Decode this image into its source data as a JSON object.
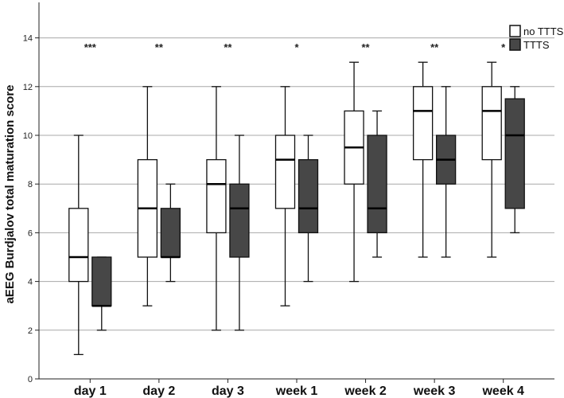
{
  "chart_data": {
    "type": "box",
    "ylabel": "aEEG Burdjalov total maturation score",
    "xlabel": "",
    "ylim": [
      0,
      15.5
    ],
    "yticks": [
      0,
      2,
      4,
      6,
      8,
      10,
      12,
      14
    ],
    "grid": true,
    "legend_position": "top-right",
    "categories": [
      "day 1",
      "day 2",
      "day 3",
      "week 1",
      "week 2",
      "week 3",
      "week 4"
    ],
    "significance": [
      "***",
      "**",
      "**",
      "*",
      "**",
      "**",
      "*"
    ],
    "series": [
      {
        "name": "no TTTS",
        "color": "#ffffff",
        "boxes": [
          {
            "min": 1,
            "q1": 4,
            "median": 5,
            "q3": 7,
            "max": 10
          },
          {
            "min": 3,
            "q1": 5,
            "median": 7,
            "q3": 9,
            "max": 12
          },
          {
            "min": 2,
            "q1": 6,
            "median": 8,
            "q3": 9,
            "max": 12
          },
          {
            "min": 3,
            "q1": 7,
            "median": 9,
            "q3": 10,
            "max": 12
          },
          {
            "min": 4,
            "q1": 8,
            "median": 9.5,
            "q3": 11,
            "max": 13
          },
          {
            "min": 5,
            "q1": 9,
            "median": 11,
            "q3": 12,
            "max": 13
          },
          {
            "min": 5,
            "q1": 9,
            "median": 11,
            "q3": 12,
            "max": 13
          }
        ]
      },
      {
        "name": "TTTS",
        "color": "#474747",
        "boxes": [
          {
            "min": 2,
            "q1": 3,
            "median": 3,
            "q3": 5,
            "max": 5
          },
          {
            "min": 4,
            "q1": 5,
            "median": 5,
            "q3": 7,
            "max": 8
          },
          {
            "min": 2,
            "q1": 5,
            "median": 7,
            "q3": 8,
            "max": 10
          },
          {
            "min": 4,
            "q1": 6,
            "median": 7,
            "q3": 9,
            "max": 10
          },
          {
            "min": 5,
            "q1": 6,
            "median": 7,
            "q3": 10,
            "max": 11
          },
          {
            "min": 5,
            "q1": 8,
            "median": 9,
            "q3": 10,
            "max": 12
          },
          {
            "min": 6,
            "q1": 7,
            "median": 10,
            "q3": 11.5,
            "max": 12
          }
        ]
      }
    ]
  }
}
